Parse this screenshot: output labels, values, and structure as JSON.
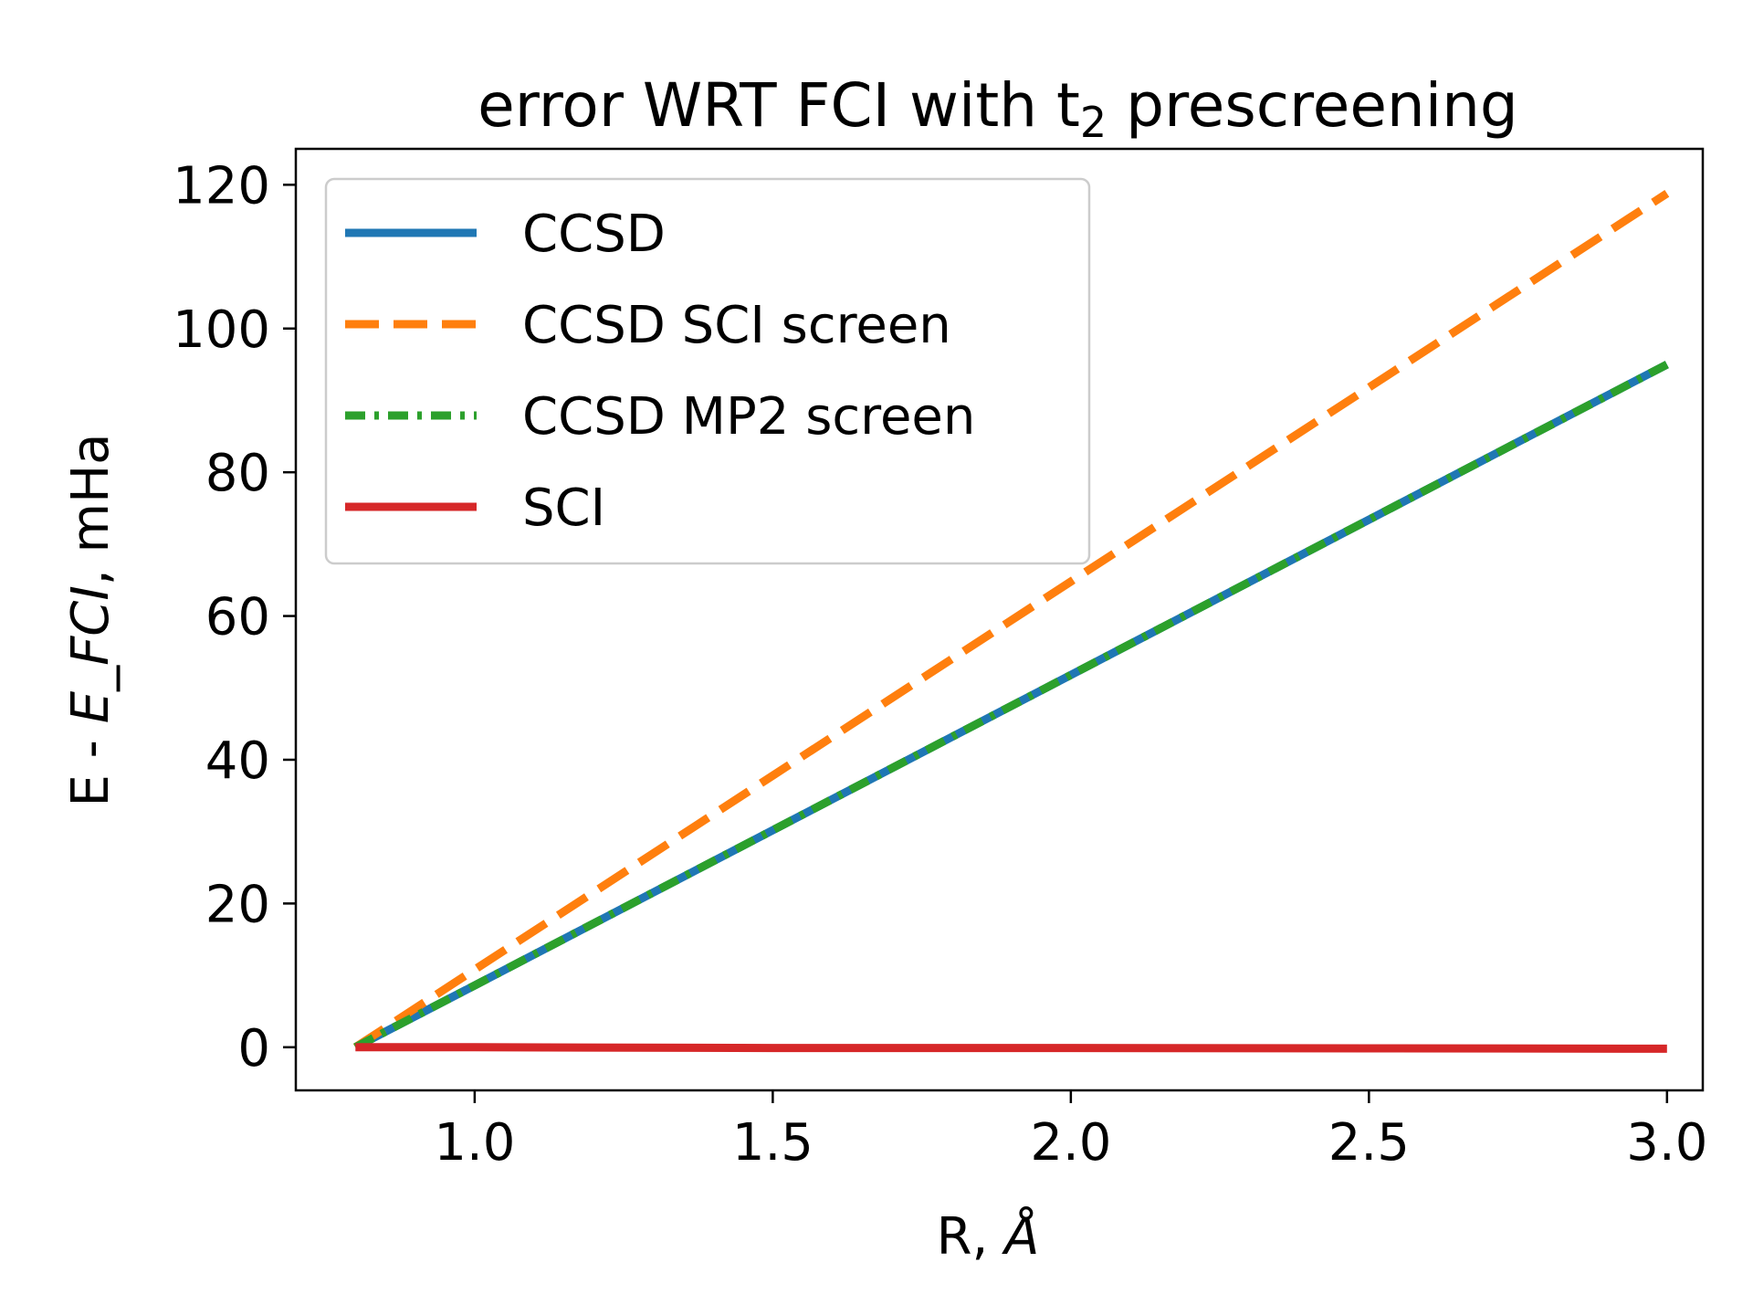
{
  "chart_data": {
    "type": "line",
    "title": "error WRT FCI with t",
    "title_subscript": "2",
    "title_suffix": " prescreening",
    "xlabel_prefix": "R, ",
    "xlabel_italic": "Å",
    "ylabel_prefix": "E - ",
    "ylabel_italic": "E_FCI",
    "ylabel_suffix": ", mHa",
    "xlim": [
      0.7,
      3.06
    ],
    "ylim": [
      -6,
      125
    ],
    "xticks": [
      1.0,
      1.5,
      2.0,
      2.5,
      3.0
    ],
    "xtick_labels": [
      "1.0",
      "1.5",
      "2.0",
      "2.5",
      "3.0"
    ],
    "yticks": [
      0,
      20,
      40,
      60,
      80,
      100,
      120
    ],
    "ytick_labels": [
      "0",
      "20",
      "40",
      "60",
      "80",
      "100",
      "120"
    ],
    "grid": false,
    "legend_position": "top-left",
    "series": [
      {
        "name": "CCSD",
        "color": "#1f77b4",
        "style": "solid",
        "x": [
          0.8,
          1.0,
          1.5,
          2.0,
          2.5,
          3.0
        ],
        "y": [
          0,
          8.6,
          30.2,
          51.8,
          73.4,
          95.0
        ]
      },
      {
        "name": "CCSD SCI screen",
        "color": "#ff7f0e",
        "style": "dashed",
        "x": [
          0.8,
          1.0,
          1.5,
          2.0,
          2.5,
          3.0
        ],
        "y": [
          0,
          10.8,
          37.8,
          64.8,
          91.8,
          118.8
        ]
      },
      {
        "name": "CCSD MP2 screen",
        "color": "#2ca02c",
        "style": "dashdot",
        "x": [
          0.8,
          1.0,
          1.5,
          2.0,
          2.5,
          3.0
        ],
        "y": [
          0,
          8.6,
          30.2,
          51.8,
          73.4,
          95.0
        ]
      },
      {
        "name": "SCI",
        "color": "#d62728",
        "style": "solid",
        "x": [
          0.8,
          1.0,
          1.5,
          2.0,
          2.5,
          3.0
        ],
        "y": [
          0,
          0,
          -0.1,
          -0.1,
          -0.15,
          -0.2
        ]
      }
    ]
  }
}
